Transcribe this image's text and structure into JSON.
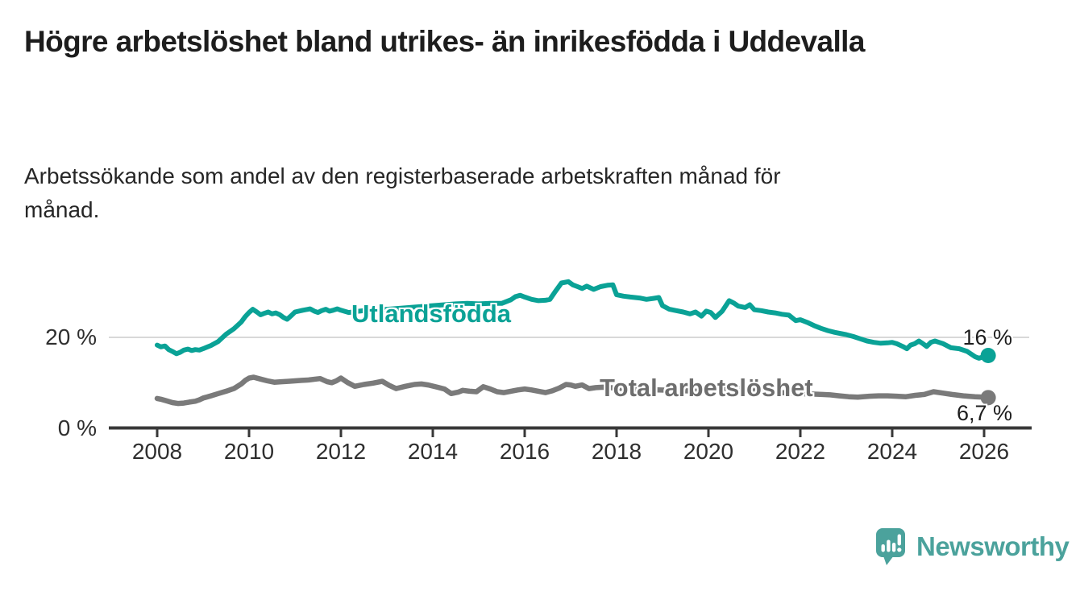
{
  "header": {
    "title": "Högre arbetslöshet bland utrikes- än inrikesfödda i Uddevalla",
    "subtitle": "Arbetssökande som andel av den registerbaserade arbetskraften månad för månad."
  },
  "branding": {
    "logo_text": "Newsworthy",
    "logo_icon": "speech-bubble-bar-chart-icon"
  },
  "colors": {
    "series_utlandsfodda": "#0aa296",
    "series_total": "#7a7a7a",
    "series_total_label": "#6e6e6e",
    "gridline": "#d8d8d8",
    "axis": "#383838",
    "logo": "#4ba29c",
    "title_text": "#1d1d1d"
  },
  "chart_data": {
    "type": "line",
    "title": "Högre arbetslöshet bland utrikes- än inrikesfödda i Uddevalla",
    "subtitle": "Arbetssökande som andel av den registerbaserade arbetskraften månad för månad.",
    "unit": "%",
    "grid": "horizontal-only",
    "legend_position": "inline-labels",
    "x_axis": {
      "range": [
        2006.95,
        2027.05
      ],
      "ticks": [
        {
          "value": 2008,
          "label": "2008"
        },
        {
          "value": 2010,
          "label": "2010"
        },
        {
          "value": 2012,
          "label": "2012"
        },
        {
          "value": 2014,
          "label": "2014"
        },
        {
          "value": 2016,
          "label": "2016"
        },
        {
          "value": 2018,
          "label": "2018"
        },
        {
          "value": 2020,
          "label": "2020"
        },
        {
          "value": 2022,
          "label": "2022"
        },
        {
          "value": 2024,
          "label": "2024"
        },
        {
          "value": 2026,
          "label": "2026"
        }
      ]
    },
    "y_axis": {
      "range": [
        0,
        34
      ],
      "gridlines": [
        20
      ],
      "ticks": [
        {
          "value": 20,
          "label": "20 %"
        },
        {
          "value": 0,
          "label": "0 %"
        }
      ]
    },
    "series": [
      {
        "name": "Utlandsfödda",
        "color": "#0aa296",
        "end_label": "16 %",
        "end_value": 16,
        "points": [
          [
            2008.0,
            18.3
          ],
          [
            2008.08,
            17.9
          ],
          [
            2008.17,
            18.1
          ],
          [
            2008.25,
            17.3
          ],
          [
            2008.33,
            16.9
          ],
          [
            2008.42,
            16.4
          ],
          [
            2008.5,
            16.7
          ],
          [
            2008.58,
            17.2
          ],
          [
            2008.67,
            17.4
          ],
          [
            2008.75,
            17.1
          ],
          [
            2008.83,
            17.3
          ],
          [
            2008.92,
            17.2
          ],
          [
            2009.0,
            17.5
          ],
          [
            2009.17,
            18.2
          ],
          [
            2009.33,
            19.1
          ],
          [
            2009.5,
            20.7
          ],
          [
            2009.67,
            21.9
          ],
          [
            2009.83,
            23.4
          ],
          [
            2009.92,
            24.6
          ],
          [
            2010.0,
            25.5
          ],
          [
            2010.08,
            26.2
          ],
          [
            2010.17,
            25.6
          ],
          [
            2010.25,
            25.0
          ],
          [
            2010.33,
            25.3
          ],
          [
            2010.42,
            25.6
          ],
          [
            2010.5,
            25.2
          ],
          [
            2010.58,
            25.4
          ],
          [
            2010.67,
            25.0
          ],
          [
            2010.75,
            24.4
          ],
          [
            2010.83,
            24.0
          ],
          [
            2010.92,
            24.8
          ],
          [
            2011.0,
            25.6
          ],
          [
            2011.17,
            26.0
          ],
          [
            2011.33,
            26.3
          ],
          [
            2011.42,
            25.8
          ],
          [
            2011.5,
            25.5
          ],
          [
            2011.58,
            25.9
          ],
          [
            2011.67,
            26.2
          ],
          [
            2011.75,
            25.8
          ],
          [
            2011.83,
            26.0
          ],
          [
            2011.92,
            26.3
          ],
          [
            2012.0,
            26.0
          ],
          [
            2012.17,
            25.5
          ],
          [
            2012.33,
            25.7
          ],
          [
            2012.5,
            25.9
          ],
          [
            2012.67,
            25.7
          ],
          [
            2012.83,
            26.0
          ],
          [
            2013.0,
            26.2
          ],
          [
            2013.25,
            26.4
          ],
          [
            2013.5,
            26.6
          ],
          [
            2013.75,
            26.8
          ],
          [
            2014.0,
            27.0
          ],
          [
            2014.25,
            27.2
          ],
          [
            2014.5,
            27.4
          ],
          [
            2014.75,
            27.5
          ],
          [
            2015.0,
            27.4
          ],
          [
            2015.25,
            27.5
          ],
          [
            2015.5,
            27.5
          ],
          [
            2015.7,
            28.3
          ],
          [
            2015.8,
            29.0
          ],
          [
            2015.9,
            29.3
          ],
          [
            2016.0,
            28.9
          ],
          [
            2016.15,
            28.4
          ],
          [
            2016.3,
            28.1
          ],
          [
            2016.45,
            28.2
          ],
          [
            2016.55,
            28.4
          ],
          [
            2016.65,
            29.9
          ],
          [
            2016.8,
            32.0
          ],
          [
            2016.95,
            32.3
          ],
          [
            2017.05,
            31.6
          ],
          [
            2017.15,
            31.2
          ],
          [
            2017.25,
            30.8
          ],
          [
            2017.35,
            31.3
          ],
          [
            2017.5,
            30.6
          ],
          [
            2017.65,
            31.2
          ],
          [
            2017.8,
            31.5
          ],
          [
            2017.92,
            31.6
          ],
          [
            2018.0,
            29.4
          ],
          [
            2018.15,
            29.1
          ],
          [
            2018.3,
            28.9
          ],
          [
            2018.5,
            28.7
          ],
          [
            2018.65,
            28.4
          ],
          [
            2018.8,
            28.6
          ],
          [
            2018.92,
            28.8
          ],
          [
            2019.0,
            27.0
          ],
          [
            2019.15,
            26.2
          ],
          [
            2019.3,
            25.9
          ],
          [
            2019.45,
            25.6
          ],
          [
            2019.6,
            25.2
          ],
          [
            2019.72,
            25.6
          ],
          [
            2019.85,
            24.7
          ],
          [
            2019.95,
            25.8
          ],
          [
            2020.05,
            25.5
          ],
          [
            2020.15,
            24.4
          ],
          [
            2020.3,
            25.8
          ],
          [
            2020.45,
            28.1
          ],
          [
            2020.55,
            27.6
          ],
          [
            2020.65,
            26.9
          ],
          [
            2020.8,
            26.6
          ],
          [
            2020.9,
            27.2
          ],
          [
            2021.0,
            26.1
          ],
          [
            2021.15,
            25.9
          ],
          [
            2021.3,
            25.6
          ],
          [
            2021.45,
            25.4
          ],
          [
            2021.6,
            25.1
          ],
          [
            2021.75,
            24.9
          ],
          [
            2021.9,
            23.7
          ],
          [
            2022.0,
            23.9
          ],
          [
            2022.15,
            23.3
          ],
          [
            2022.3,
            22.6
          ],
          [
            2022.45,
            22.0
          ],
          [
            2022.6,
            21.5
          ],
          [
            2022.75,
            21.1
          ],
          [
            2022.9,
            20.8
          ],
          [
            2023.0,
            20.6
          ],
          [
            2023.15,
            20.2
          ],
          [
            2023.3,
            19.7
          ],
          [
            2023.45,
            19.2
          ],
          [
            2023.6,
            18.9
          ],
          [
            2023.75,
            18.7
          ],
          [
            2023.9,
            18.8
          ],
          [
            2024.0,
            18.9
          ],
          [
            2024.1,
            18.6
          ],
          [
            2024.23,
            18.0
          ],
          [
            2024.32,
            17.5
          ],
          [
            2024.4,
            18.3
          ],
          [
            2024.49,
            18.6
          ],
          [
            2024.58,
            19.2
          ],
          [
            2024.67,
            18.6
          ],
          [
            2024.75,
            18.0
          ],
          [
            2024.84,
            18.9
          ],
          [
            2024.93,
            19.2
          ],
          [
            2025.02,
            18.9
          ],
          [
            2025.11,
            18.6
          ],
          [
            2025.28,
            17.7
          ],
          [
            2025.46,
            17.5
          ],
          [
            2025.63,
            16.9
          ],
          [
            2025.81,
            15.7
          ],
          [
            2025.89,
            15.4
          ],
          [
            2025.98,
            15.7
          ],
          [
            2026.09,
            16.0
          ]
        ]
      },
      {
        "name": "Total arbetslöshet",
        "color": "#7a7a7a",
        "end_label": "6,7 %",
        "end_value": 6.7,
        "points": [
          [
            2008.0,
            6.5
          ],
          [
            2008.1,
            6.3
          ],
          [
            2008.2,
            6.0
          ],
          [
            2008.33,
            5.6
          ],
          [
            2008.45,
            5.4
          ],
          [
            2008.58,
            5.5
          ],
          [
            2008.7,
            5.7
          ],
          [
            2008.83,
            5.9
          ],
          [
            2008.92,
            6.2
          ],
          [
            2009.0,
            6.6
          ],
          [
            2009.17,
            7.1
          ],
          [
            2009.33,
            7.6
          ],
          [
            2009.5,
            8.1
          ],
          [
            2009.67,
            8.7
          ],
          [
            2009.83,
            9.7
          ],
          [
            2009.92,
            10.5
          ],
          [
            2010.0,
            11.0
          ],
          [
            2010.1,
            11.2
          ],
          [
            2010.25,
            10.8
          ],
          [
            2010.4,
            10.4
          ],
          [
            2010.55,
            10.1
          ],
          [
            2010.7,
            10.2
          ],
          [
            2010.85,
            10.3
          ],
          [
            2011.0,
            10.4
          ],
          [
            2011.15,
            10.5
          ],
          [
            2011.3,
            10.6
          ],
          [
            2011.45,
            10.8
          ],
          [
            2011.55,
            10.9
          ],
          [
            2011.7,
            10.2
          ],
          [
            2011.8,
            10.0
          ],
          [
            2011.9,
            10.4
          ],
          [
            2012.0,
            11.0
          ],
          [
            2012.15,
            10.0
          ],
          [
            2012.3,
            9.2
          ],
          [
            2012.5,
            9.6
          ],
          [
            2012.7,
            9.9
          ],
          [
            2012.9,
            10.3
          ],
          [
            2013.05,
            9.4
          ],
          [
            2013.2,
            8.7
          ],
          [
            2013.4,
            9.2
          ],
          [
            2013.6,
            9.6
          ],
          [
            2013.75,
            9.7
          ],
          [
            2013.9,
            9.5
          ],
          [
            2014.1,
            9.0
          ],
          [
            2014.25,
            8.6
          ],
          [
            2014.4,
            7.6
          ],
          [
            2014.55,
            7.9
          ],
          [
            2014.65,
            8.3
          ],
          [
            2014.8,
            8.1
          ],
          [
            2014.95,
            8.0
          ],
          [
            2015.1,
            9.1
          ],
          [
            2015.25,
            8.6
          ],
          [
            2015.4,
            8.0
          ],
          [
            2015.55,
            7.8
          ],
          [
            2015.7,
            8.1
          ],
          [
            2015.85,
            8.4
          ],
          [
            2016.0,
            8.6
          ],
          [
            2016.15,
            8.4
          ],
          [
            2016.3,
            8.1
          ],
          [
            2016.45,
            7.8
          ],
          [
            2016.6,
            8.2
          ],
          [
            2016.75,
            8.8
          ],
          [
            2016.9,
            9.6
          ],
          [
            2017.0,
            9.5
          ],
          [
            2017.1,
            9.2
          ],
          [
            2017.25,
            9.5
          ],
          [
            2017.4,
            8.7
          ],
          [
            2017.55,
            8.9
          ],
          [
            2017.7,
            9.0
          ],
          [
            2017.85,
            8.9
          ],
          [
            2018.0,
            8.8
          ],
          [
            2018.3,
            8.6
          ],
          [
            2018.6,
            8.5
          ],
          [
            2018.9,
            8.4
          ],
          [
            2019.2,
            8.3
          ],
          [
            2019.5,
            8.2
          ],
          [
            2019.8,
            8.1
          ],
          [
            2020.1,
            8.4
          ],
          [
            2020.4,
            8.8
          ],
          [
            2020.7,
            8.6
          ],
          [
            2021.0,
            8.3
          ],
          [
            2021.3,
            8.0
          ],
          [
            2021.6,
            7.8
          ],
          [
            2021.9,
            7.6
          ],
          [
            2022.2,
            7.5
          ],
          [
            2022.47,
            7.4
          ],
          [
            2022.65,
            7.3
          ],
          [
            2022.85,
            7.1
          ],
          [
            2023.05,
            6.9
          ],
          [
            2023.25,
            6.8
          ],
          [
            2023.5,
            7.0
          ],
          [
            2023.7,
            7.1
          ],
          [
            2023.9,
            7.1
          ],
          [
            2024.1,
            7.0
          ],
          [
            2024.3,
            6.9
          ],
          [
            2024.5,
            7.2
          ],
          [
            2024.7,
            7.4
          ],
          [
            2024.9,
            8.0
          ],
          [
            2025.1,
            7.7
          ],
          [
            2025.3,
            7.4
          ],
          [
            2025.55,
            7.1
          ],
          [
            2025.8,
            6.9
          ],
          [
            2026.0,
            6.8
          ],
          [
            2026.09,
            6.7
          ]
        ]
      }
    ]
  }
}
